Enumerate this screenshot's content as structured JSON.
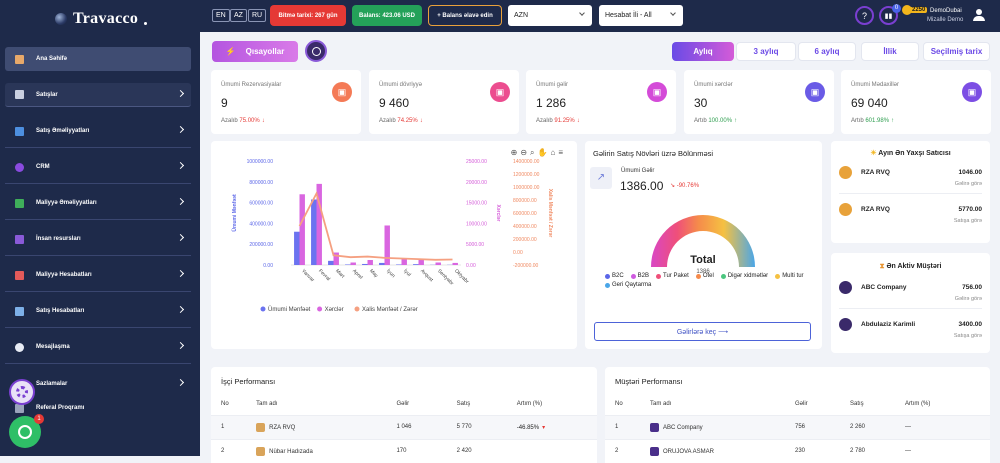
{
  "app": {
    "logo": "Travacco"
  },
  "sidebar": {
    "items": [
      {
        "label": "Ana Səhifə"
      },
      {
        "label": "Satışlar"
      },
      {
        "label": "Satış Əməliyyatları"
      },
      {
        "label": "CRM"
      },
      {
        "label": "Maliyyə Əməliyyatları"
      },
      {
        "label": "İnsan resursları"
      },
      {
        "label": "Maliyyə Hesabatları"
      },
      {
        "label": "Satış Hesabatları"
      },
      {
        "label": "Mesajlaşma"
      },
      {
        "label": "Sazlamalar"
      },
      {
        "label": "Referal Proqramı"
      }
    ],
    "chat_badge": "1"
  },
  "topbar": {
    "langs": [
      "EN",
      "AZ",
      "RU"
    ],
    "expiry": "Bitmə tarixi: 267 gün",
    "balance": "Balans: 423.06 USD",
    "add_balance": "+ Balans əlavə edin",
    "currency": "AZN",
    "report_filter": "Hesabat İli - All",
    "notif_count": "0",
    "coins": "2250",
    "user_name": "DemoDubai",
    "user_company": "Mizalle Demo"
  },
  "quick": {
    "label": "Qısayollar"
  },
  "periods": [
    "Aylıq",
    "3 aylıq",
    "6 aylıq",
    "İllik",
    "Seçilmiş tarix"
  ],
  "stats": [
    {
      "title": "Ümumi Rezervasiyalar",
      "value": "9",
      "sub_label": "Azalıb",
      "sub_value": "75.00%",
      "dir": "down",
      "color": "#f47a56"
    },
    {
      "title": "Ümumi dövriyyə",
      "value": "9 460",
      "sub_label": "Azalıb",
      "sub_value": "74.25%",
      "dir": "down",
      "color": "#ec4d8f"
    },
    {
      "title": "Ümumi gəlir",
      "value": "1 286",
      "sub_label": "Azalıb",
      "sub_value": "91.25%",
      "dir": "down",
      "color": "#d44bd8"
    },
    {
      "title": "Ümumi xərclər",
      "value": "30",
      "sub_label": "Artıb",
      "sub_value": "100.00%",
      "dir": "up",
      "color": "#6a5be6"
    },
    {
      "title": "Ümumi Mədaxillər",
      "value": "69 040",
      "sub_label": "Artıb",
      "sub_value": "601.98%",
      "dir": "up",
      "color": "#7c4ee4"
    }
  ],
  "chart_data": [
    {
      "type": "bar",
      "categories": [
        "Yanvar",
        "Fevral",
        "Mart",
        "Aprel",
        "May",
        "İyun",
        "İyul",
        "Avqust",
        "Sentyabr",
        "Oktyabr"
      ],
      "series": [
        {
          "name": "Ümumi Mənfəət",
          "type": "bar",
          "axis": "left",
          "color": "#6b73f0",
          "values": [
            320000,
            630000,
            40000,
            5000,
            10000,
            20000,
            5000,
            8000,
            2000,
            2000
          ]
        },
        {
          "name": "Xərclər",
          "type": "bar",
          "axis": "right1",
          "color": "#d966e0",
          "values": [
            17000,
            19500,
            3000,
            600,
            1200,
            9500,
            1600,
            1500,
            600,
            500
          ]
        },
        {
          "name": "Xalis Mənfəət / Zərər",
          "type": "line",
          "axis": "right2",
          "color": "#f5a081",
          "values": [
            400000,
            900000,
            -50000,
            -80000,
            -70000,
            -90000,
            -100000,
            -110000,
            -120000,
            -115000
          ]
        }
      ],
      "axes": {
        "left": {
          "label": "Ümumi Mənfəət",
          "ticks": [
            "1000000.00",
            "800000.00",
            "600000.00",
            "400000.00",
            "200000.00",
            "0.00"
          ],
          "ylim": [
            0,
            1000000
          ]
        },
        "right1": {
          "label": "Xərclər",
          "ticks": [
            "25000.00",
            "20000.00",
            "15000.00",
            "10000.00",
            "5000.00",
            "0.00"
          ],
          "ylim": [
            0,
            25000
          ]
        },
        "right2": {
          "label": "Xalis Mənfəət / Zərər",
          "ticks": [
            "1400000.00",
            "1200000.00",
            "1000000.00",
            "800000.00",
            "600000.00",
            "400000.00",
            "200000.00",
            "0.00",
            "-200000.00"
          ],
          "ylim": [
            -200000,
            1400000
          ]
        }
      },
      "legend": "bottom"
    },
    {
      "type": "pie",
      "title": "Gəlirin Satış Növləri üzrə Bölünməsi",
      "total_label": "Total",
      "total_value": "1386",
      "income_label": "Ümumi Gəlir",
      "income_value": "1386.00",
      "income_change": "-90.76%",
      "categories": [
        "B2C",
        "B2B",
        "Tur Paket",
        "Otel",
        "Digər xidmətlər",
        "Multi tur",
        "Geri Qaytarma"
      ],
      "colors": [
        "#5b66e8",
        "#cf5be0",
        "#ef4f7a",
        "#f58a4b",
        "#4cc67f",
        "#f5c142",
        "#4aa6e8"
      ],
      "values": [
        0,
        0,
        0,
        0,
        0,
        1386,
        0
      ],
      "button": "Gəlirlərə keç  ⟶"
    }
  ],
  "best_seller": {
    "title": "Ayın Ən Yaxşı Satıcısı",
    "rows": [
      {
        "name": "RZA RVQ",
        "value": "1046.00",
        "sub": "Gəlirə görə"
      },
      {
        "name": "RZA RVQ",
        "value": "5770.00",
        "sub": "Satışa görə"
      }
    ]
  },
  "active_customer": {
    "title": "Ən Aktiv Müştəri",
    "rows": [
      {
        "name": "ABC Company",
        "value": "756.00",
        "sub": "Gəlirə görə"
      },
      {
        "name": "Abdulaziz Karimli",
        "value": "3400.00",
        "sub": "Satışa görə"
      }
    ]
  },
  "employee_perf": {
    "title": "İşçi Performansı",
    "headers": [
      "No",
      "Tam adı",
      "Gəlir",
      "Satış",
      "Artım (%)"
    ],
    "rows": [
      [
        "1",
        "RZA RVQ",
        "1 046",
        "5 770",
        "-46.85%"
      ],
      [
        "2",
        "Nübar Hadızada",
        "170",
        "2 420",
        ""
      ]
    ]
  },
  "customer_perf": {
    "title": "Müştəri Performansı",
    "headers": [
      "No",
      "Tam adı",
      "Gəlir",
      "Satış",
      "Artım (%)"
    ],
    "rows": [
      [
        "1",
        "ABC Company",
        "756",
        "2 260",
        "—"
      ],
      [
        "2",
        "ORUJOVA ASMAR",
        "230",
        "2 780",
        "—"
      ]
    ]
  }
}
